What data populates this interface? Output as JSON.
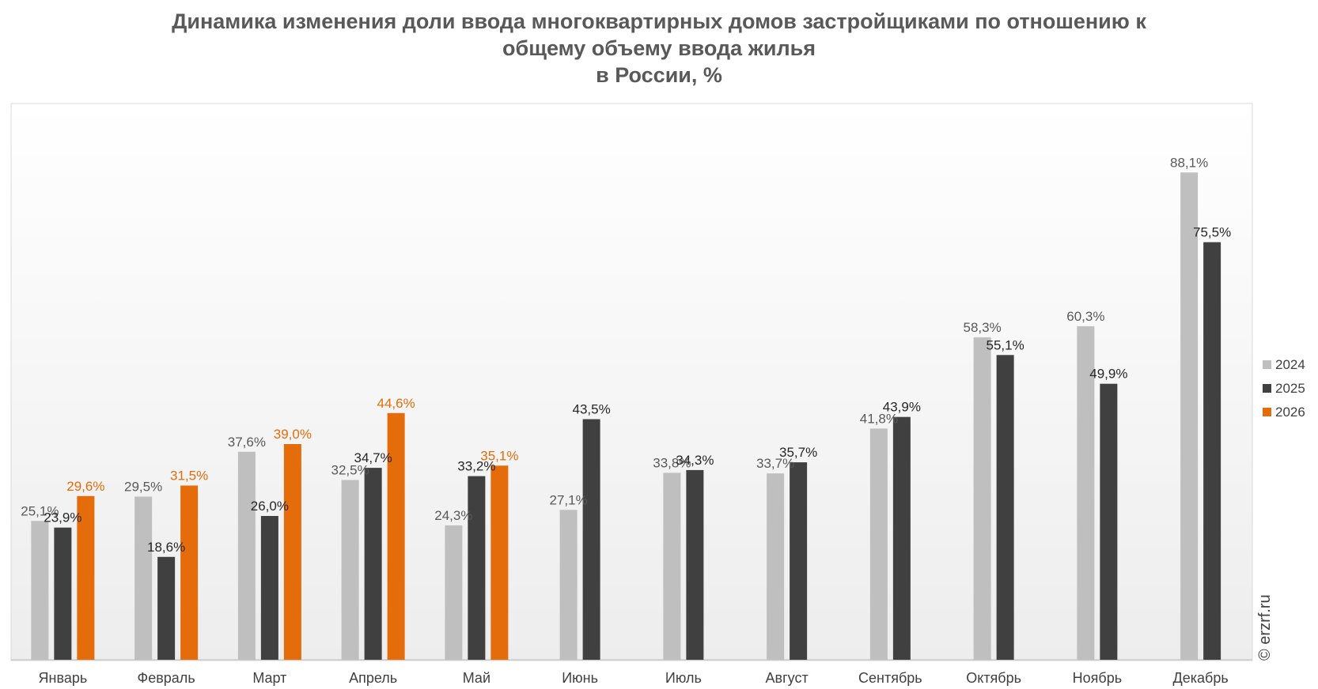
{
  "chart_data": {
    "type": "bar",
    "title": [
      "Динамика изменения доли ввода многоквартирных домов застройщиками по отношению к",
      "общему объему ввода жилья",
      "в России, %"
    ],
    "categories": [
      "Январь",
      "Февраль",
      "Март",
      "Апрель",
      "Май",
      "Июнь",
      "Июль",
      "Август",
      "Сентябрь",
      "Октябрь",
      "Ноябрь",
      "Декабрь"
    ],
    "series": [
      {
        "name": "2024",
        "color": "#bfbfbf",
        "label_color": "#595959",
        "values": [
          25.1,
          29.5,
          37.6,
          32.5,
          24.3,
          27.1,
          33.8,
          33.7,
          41.8,
          58.3,
          60.3,
          88.1
        ],
        "labels": [
          "25,1%",
          "29,5%",
          "37,6%",
          "32,5%",
          "24,3%",
          "27,1%",
          "33,8%",
          "33,7%",
          "41,8%",
          "58,3%",
          "60,3%",
          "88,1%"
        ]
      },
      {
        "name": "2025",
        "color": "#404040",
        "label_color": "#262626",
        "values": [
          23.9,
          18.6,
          26.0,
          34.7,
          33.2,
          43.5,
          34.3,
          35.7,
          43.9,
          55.1,
          49.9,
          75.5
        ],
        "labels": [
          "23,9%",
          "18,6%",
          "26,0%",
          "34,7%",
          "33,2%",
          "43,5%",
          "34,3%",
          "35,7%",
          "43,9%",
          "55,1%",
          "49,9%",
          "75,5%"
        ]
      },
      {
        "name": "2026",
        "color": "#e46c0a",
        "label_color": "#e46c0a",
        "values": [
          29.6,
          31.5,
          39.0,
          44.6,
          35.1,
          null,
          null,
          null,
          null,
          null,
          null,
          null
        ],
        "labels": [
          "29,6%",
          "31,5%",
          "39,0%",
          "44,6%",
          "35,1%",
          null,
          null,
          null,
          null,
          null,
          null,
          null
        ]
      }
    ],
    "ylim": [
      0,
      100
    ],
    "legend": "right",
    "grid": false
  },
  "watermark": "© erzrf.ru"
}
